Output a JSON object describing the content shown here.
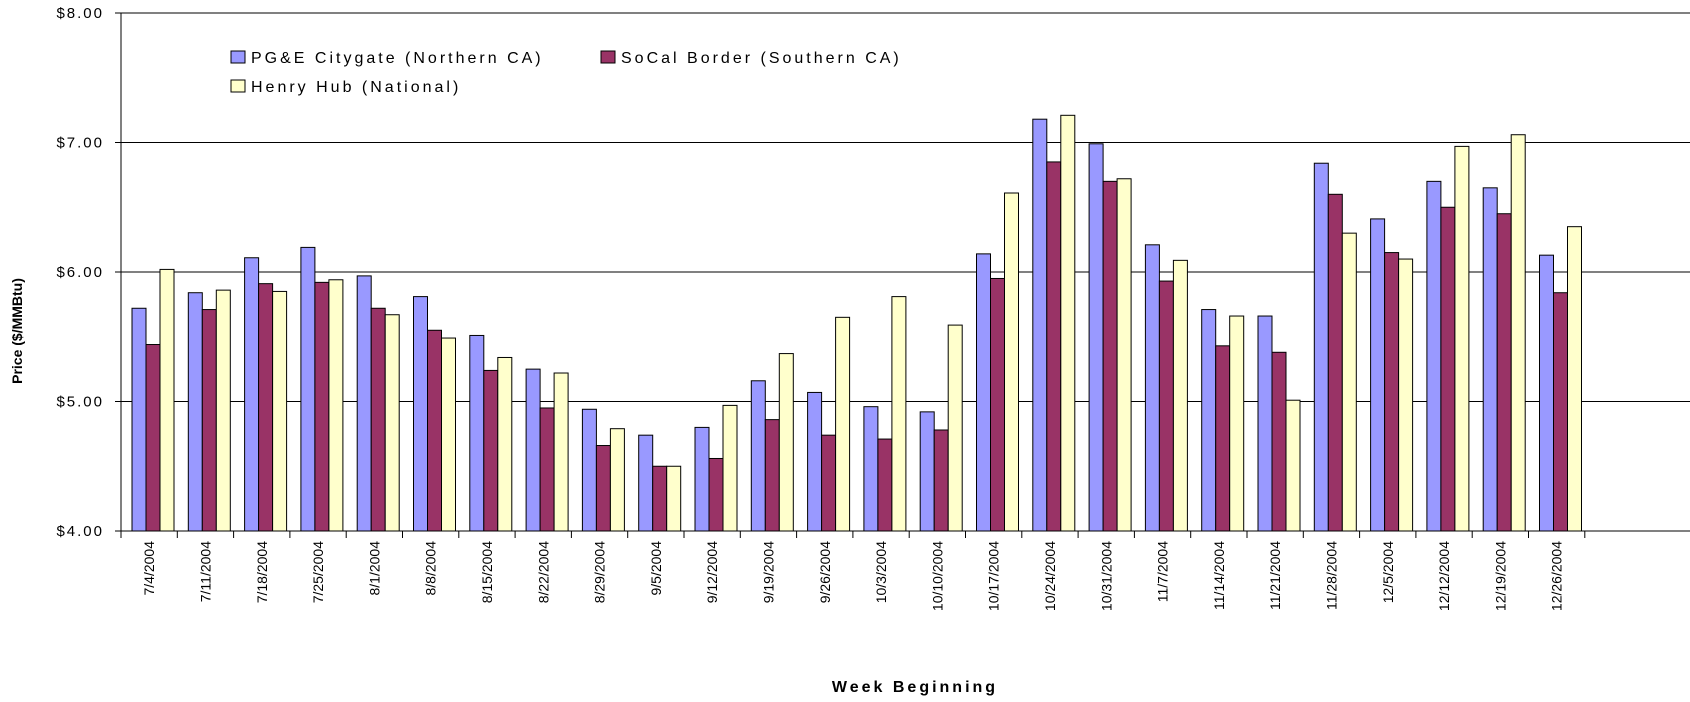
{
  "chart_data": {
    "type": "bar",
    "title": "",
    "xlabel": "Week Beginning",
    "ylabel": "Price ($/MMBtu)",
    "ylim": [
      4,
      8
    ],
    "yticks": [
      "$4.00",
      "$5.00",
      "$6.00",
      "$7.00",
      "$8.00"
    ],
    "grid": true,
    "legend_position": "top-left",
    "categories": [
      "7/4/2004",
      "7/11/2004",
      "7/18/2004",
      "7/25/2004",
      "8/1/2004",
      "8/8/2004",
      "8/15/2004",
      "8/22/2004",
      "8/29/2004",
      "9/5/2004",
      "9/12/2004",
      "9/19/2004",
      "9/26/2004",
      "10/3/2004",
      "10/10/2004",
      "10/17/2004",
      "10/24/2004",
      "10/31/2004",
      "11/7/2004",
      "11/14/2004",
      "11/21/2004",
      "11/28/2004",
      "12/5/2004",
      "12/12/2004",
      "12/19/2004",
      "12/26/2004"
    ],
    "series": [
      {
        "name": "PG&E Citygate (Northern CA)",
        "color": "#9999ff",
        "values": [
          5.72,
          5.84,
          6.11,
          6.19,
          5.97,
          5.81,
          5.51,
          5.25,
          4.94,
          4.74,
          4.8,
          5.16,
          5.07,
          4.96,
          4.92,
          6.14,
          7.18,
          6.99,
          6.21,
          5.71,
          5.66,
          6.84,
          6.41,
          6.7,
          6.65,
          6.13
        ]
      },
      {
        "name": "SoCal Border (Southern CA)",
        "color": "#993366",
        "values": [
          5.44,
          5.71,
          5.91,
          5.92,
          5.72,
          5.55,
          5.24,
          4.95,
          4.66,
          4.5,
          4.56,
          4.86,
          4.74,
          4.71,
          4.78,
          5.95,
          6.85,
          6.7,
          5.93,
          5.43,
          5.38,
          6.6,
          6.15,
          6.5,
          6.45,
          5.84
        ]
      },
      {
        "name": "Henry Hub (National)",
        "color": "#ffffcc",
        "values": [
          6.02,
          5.86,
          5.85,
          5.94,
          5.67,
          5.49,
          5.34,
          5.22,
          4.79,
          4.5,
          4.97,
          5.37,
          5.65,
          5.81,
          5.59,
          6.61,
          7.21,
          6.72,
          6.09,
          5.66,
          5.01,
          6.3,
          6.1,
          6.97,
          7.06,
          6.35
        ]
      }
    ]
  }
}
